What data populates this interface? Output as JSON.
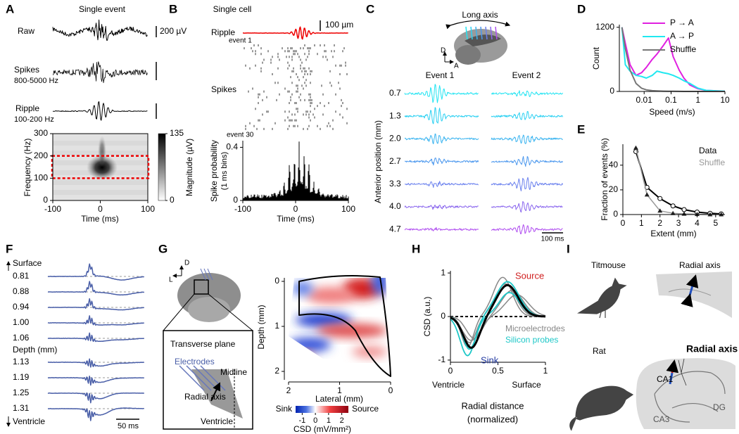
{
  "panels": {
    "A": {
      "letter": "A",
      "title": "Single event",
      "raw": "Raw",
      "spikes": "Spikes",
      "spikes_band": "800-5000 Hz",
      "ripple": "Ripple",
      "ripple_band": "100-200 Hz",
      "scale_bar": "200 µV",
      "band_lim": [
        100,
        200
      ],
      "ylabel": "Frequency (Hz)",
      "ylim": [
        0,
        300
      ],
      "yticks": [
        0,
        100,
        200,
        300
      ],
      "xlabel": "Time (ms)",
      "xlim": [
        -100,
        100
      ],
      "xticks": [
        -100,
        0,
        100
      ],
      "colorbar_label": "Magnitude (µV)",
      "colorbar_lim": [
        0,
        135
      ],
      "colorbar_ticks": [
        0,
        135
      ]
    },
    "B": {
      "letter": "B",
      "title": "Single cell",
      "ripple": "Ripple",
      "scale_bar": "100 µm",
      "first_event": "event 1",
      "last_event": "event 30",
      "spikes": "Spikes",
      "ylabel": [
        "Spike probability",
        "(1 ms bins)"
      ],
      "ylim": [
        0,
        0.45
      ],
      "yticks": [
        0,
        0.4
      ],
      "xlim": [
        -100,
        100
      ],
      "xticks": [
        -100,
        0,
        100
      ],
      "xlabel": "Time (ms)"
    },
    "C": {
      "letter": "C",
      "long_axis": "Long axis",
      "dorsal": "D",
      "anterior": "A",
      "events": [
        "Event 1",
        "Event 2"
      ],
      "ylabel": "Anterior position (mm)",
      "positions": [
        0.7,
        1.3,
        {
          "value": 2,
          "label": "2.0"
        },
        2.7,
        3.3,
        {
          "value": 4,
          "label": "4.0"
        },
        4.7
      ],
      "colors": [
        "#22e4f2",
        "#2ad0f2",
        "#3ab4f0",
        "#4c98ee",
        "#6a80ee",
        "#8a66ee",
        "#b04ef0"
      ],
      "scale_bar": "100 ms"
    },
    "D": {
      "letter": "D",
      "ylabel": "Count",
      "xlabel": "Speed (m/s)",
      "log_x": true,
      "xlim": [
        0.0012,
        10
      ],
      "xticks": [
        0.01,
        0.1,
        1,
        10
      ],
      "ylim": [
        0,
        1250
      ],
      "yticks": [
        0,
        1200
      ],
      "x": [
        0.0015,
        0.002,
        0.003,
        0.005,
        0.008,
        0.012,
        0.02,
        0.03,
        0.05,
        0.08,
        0.12,
        0.2,
        0.3,
        0.5,
        1,
        2,
        5,
        10
      ],
      "series": [
        {
          "name": "P → A",
          "color": "#e020e0",
          "values": [
            1200,
            900,
            500,
            300,
            350,
            450,
            600,
            700,
            850,
            1000,
            650,
            400,
            250,
            120,
            50,
            20,
            10,
            5
          ]
        },
        {
          "name": "A → P",
          "color": "#20e8f0",
          "values": [
            1200,
            500,
            380,
            300,
            280,
            250,
            300,
            380,
            350,
            330,
            300,
            250,
            200,
            150,
            60,
            20,
            10,
            5
          ]
        },
        {
          "name": "Shuffle",
          "color": "#777777",
          "values": [
            1200,
            800,
            400,
            150,
            60,
            30,
            15,
            10,
            5,
            3,
            2,
            1,
            0,
            0,
            0,
            0,
            0,
            0
          ]
        }
      ]
    },
    "E": {
      "letter": "E",
      "ylabel": "Fraction of events (%)",
      "xlabel": "Extent (mm)",
      "xlim": [
        0,
        5.5
      ],
      "xticks": [
        0,
        1,
        2,
        3,
        4,
        5
      ],
      "ylim": [
        0,
        57
      ],
      "yticks": [
        0,
        20,
        40
      ],
      "x": [
        0.7,
        1.3,
        2.0,
        2.7,
        3.3,
        4.0,
        4.7,
        5.3
      ],
      "series": [
        {
          "name": "Data",
          "color": "#000000",
          "values": [
            51,
            22,
            13,
            7,
            4,
            2,
            1,
            0.5
          ]
        },
        {
          "name": "Shuffle",
          "color": "#999999",
          "values": [
            54,
            16,
            3,
            1,
            0.5,
            0.2,
            0,
            0
          ]
        }
      ]
    },
    "F": {
      "letter": "F",
      "top": "Surface",
      "bottom": "Ventricle",
      "ylabel": "Depth (mm)",
      "depths": [
        0.81,
        0.88,
        0.94,
        {
          "value": 1,
          "label": "1.00"
        },
        1.06,
        1.13,
        1.19,
        1.25,
        1.31
      ],
      "scale_bar": "50 ms",
      "color": "#4a5fa8"
    },
    "G": {
      "letter": "G",
      "dorsal": "D",
      "lateral": "L",
      "inset_title": "Transverse plane",
      "electrodes": "Electrodes",
      "midline": "Midline",
      "radial_axis": "Radial axis",
      "ventricle": "Ventricle",
      "ylabel": "Depth (mm)",
      "ylim": [
        0,
        2
      ],
      "yticks": [
        0,
        1,
        2
      ],
      "xlabel": "Lateral (mm)",
      "xlim": [
        2,
        0
      ],
      "xticks": [
        2,
        1,
        0
      ],
      "sink": "Sink",
      "source": "Source",
      "colorbar_lim": [
        -1.5,
        2.5
      ],
      "colorbar_ticks": [
        -1,
        0,
        1,
        2
      ],
      "colorbar_label": "CSD (mV/mm²)"
    },
    "H": {
      "letter": "H",
      "ylabel": "CSD (a.u.)",
      "ylim": [
        -1.05,
        1.05
      ],
      "yticks": [
        -1,
        0,
        1
      ],
      "xlim": [
        0,
        1
      ],
      "xticks": [
        0,
        0.5,
        1
      ],
      "left": "Ventricle",
      "right": "Surface",
      "xlabel": [
        "Radial distance",
        "(normalized)"
      ],
      "source": "Source",
      "sink": "Sink",
      "legend": [
        {
          "name": "Microelectrodes",
          "color": "#888888"
        },
        {
          "name": "Silicon probes",
          "color": "#1ec8c8"
        }
      ]
    },
    "I": {
      "letter": "I",
      "species": [
        "Titmouse",
        "Rat"
      ],
      "radial_axis": [
        "Radial axis",
        "Radial axis"
      ],
      "ca1": "CA1",
      "ca3": "CA3",
      "dg": "DG"
    }
  }
}
